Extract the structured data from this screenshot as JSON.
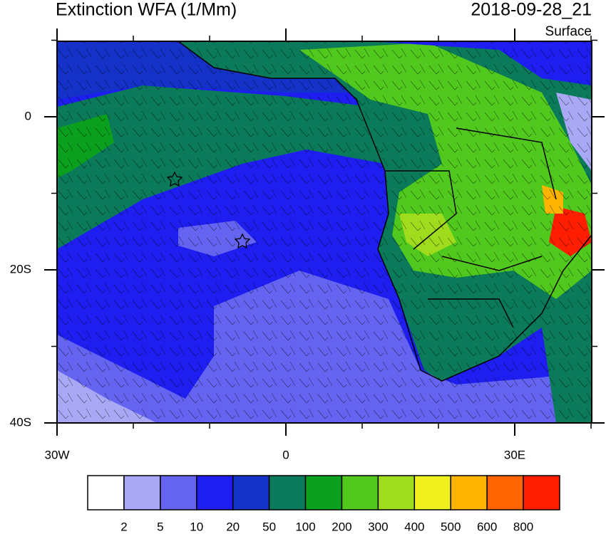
{
  "title": "Extinction WFA (1/Mm)",
  "valid_time": "2018-09-28_21",
  "level": "Surface",
  "lat_ticks": [
    {
      "value": 0,
      "label": "0"
    },
    {
      "value": -20,
      "label": "20S"
    },
    {
      "value": -40,
      "label": "40S"
    }
  ],
  "lon_ticks": [
    {
      "value": -30,
      "label": "30W"
    },
    {
      "value": 0,
      "label": "0"
    },
    {
      "value": 30,
      "label": "30E"
    }
  ],
  "colorbar": {
    "colors": [
      "#ffffff",
      "#a8a8f5",
      "#6464f0",
      "#1e1ef0",
      "#1432c8",
      "#0a7a5a",
      "#0aa01e",
      "#50c81e",
      "#a0dc1e",
      "#f0f01e",
      "#ffb400",
      "#ff6400",
      "#ff1e00"
    ],
    "levels": [
      2,
      5,
      10,
      20,
      50,
      100,
      200,
      300,
      400,
      500,
      600,
      800
    ]
  }
}
